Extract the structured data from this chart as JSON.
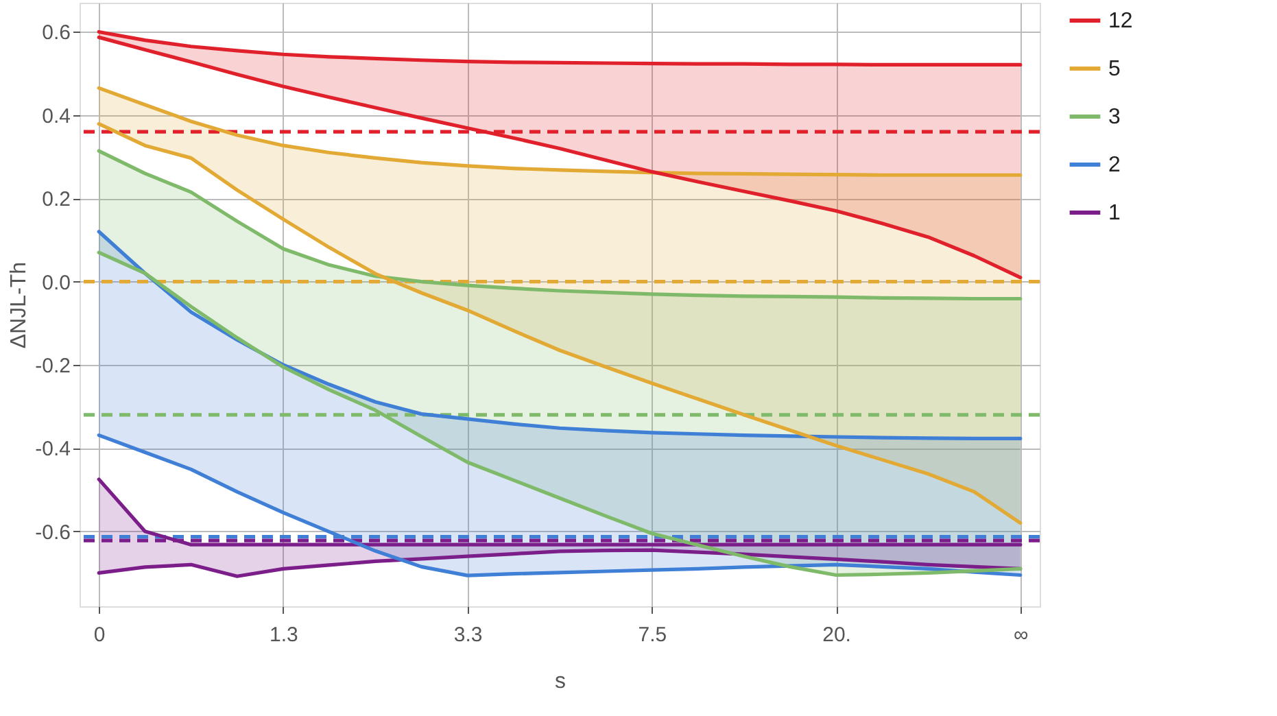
{
  "chart_data": {
    "type": "line",
    "xlabel": "s",
    "ylabel": "ΔNJL-Th",
    "categories": [
      "0",
      null,
      null,
      null,
      "1.3",
      null,
      null,
      null,
      "3.3",
      null,
      null,
      null,
      "7.5",
      null,
      null,
      null,
      "20.",
      null,
      null,
      null,
      "∞"
    ],
    "ylim": [
      -0.78,
      0.67
    ],
    "yticks": [
      -0.6,
      -0.4,
      -0.2,
      {
        "value": 0,
        "label": "0.0"
      },
      0.2,
      0.4,
      0.6
    ],
    "grid": true,
    "legend": "right",
    "marker": "none",
    "line_style": "solid",
    "series": [
      {
        "name": "12",
        "color": "#e0202a",
        "values": [
          0.6,
          0.58,
          0.565,
          0.555,
          0.546,
          0.54,
          0.536,
          0.532,
          0.529,
          0.527,
          0.526,
          0.525,
          0.524,
          0.523,
          0.523,
          0.522,
          0.522,
          0.521,
          0.521,
          0.521,
          0.521
        ],
        "lower": [
          0.587,
          0.557,
          0.528,
          0.498,
          0.469,
          0.443,
          0.418,
          0.393,
          0.369,
          0.345,
          0.32,
          0.292,
          0.264,
          0.24,
          0.217,
          0.194,
          0.17,
          0.14,
          0.107,
          0.062,
          0.01
        ],
        "upper": [
          0.6,
          0.58,
          0.565,
          0.555,
          0.546,
          0.54,
          0.536,
          0.532,
          0.529,
          0.527,
          0.526,
          0.525,
          0.524,
          0.523,
          0.523,
          0.522,
          0.522,
          0.521,
          0.521,
          0.521,
          0.521
        ]
      },
      {
        "color": "#e0202a",
        "values": [
          0.587,
          0.557,
          0.528,
          0.498,
          0.469,
          0.443,
          0.418,
          0.393,
          0.369,
          0.345,
          0.32,
          0.292,
          0.264,
          0.24,
          0.217,
          0.194,
          0.17,
          0.14,
          0.107,
          0.062,
          0.01
        ]
      },
      {
        "name": "5",
        "color": "#e3a935",
        "values": [
          0.465,
          0.425,
          0.385,
          0.352,
          0.327,
          0.31,
          0.297,
          0.286,
          0.278,
          0.272,
          0.268,
          0.265,
          0.262,
          0.26,
          0.259,
          0.258,
          0.257,
          0.256,
          0.256,
          0.256,
          0.256
        ],
        "lower": [
          0.379,
          0.327,
          0.297,
          0.22,
          0.15,
          0.082,
          0.019,
          -0.027,
          -0.069,
          -0.118,
          -0.165,
          -0.205,
          -0.244,
          -0.282,
          -0.32,
          -0.357,
          -0.394,
          -0.428,
          -0.462,
          -0.505,
          -0.58
        ],
        "upper": [
          0.465,
          0.425,
          0.385,
          0.352,
          0.327,
          0.31,
          0.297,
          0.286,
          0.278,
          0.272,
          0.268,
          0.265,
          0.262,
          0.26,
          0.259,
          0.258,
          0.257,
          0.256,
          0.256,
          0.256,
          0.256
        ]
      },
      {
        "color": "#e3a935",
        "values": [
          0.379,
          0.327,
          0.297,
          0.22,
          0.15,
          0.082,
          0.019,
          -0.027,
          -0.069,
          -0.118,
          -0.165,
          -0.205,
          -0.244,
          -0.282,
          -0.32,
          -0.357,
          -0.394,
          -0.428,
          -0.462,
          -0.505,
          -0.58
        ]
      },
      {
        "name": "3",
        "color": "#7fba6a",
        "values": [
          0.314,
          0.26,
          0.215,
          0.145,
          0.079,
          0.04,
          0.013,
          0.0,
          -0.009,
          -0.016,
          -0.022,
          -0.026,
          -0.03,
          -0.033,
          -0.035,
          -0.036,
          -0.037,
          -0.039,
          -0.04,
          -0.041,
          -0.041
        ],
        "lower": [
          0.07,
          0.02,
          -0.06,
          -0.135,
          -0.205,
          -0.26,
          -0.309,
          -0.372,
          -0.434,
          -0.477,
          -0.52,
          -0.563,
          -0.605,
          -0.633,
          -0.66,
          -0.685,
          -0.705,
          -0.703,
          -0.7,
          -0.695,
          -0.69
        ],
        "upper": [
          0.314,
          0.26,
          0.215,
          0.145,
          0.079,
          0.04,
          0.013,
          0.0,
          -0.009,
          -0.016,
          -0.022,
          -0.026,
          -0.03,
          -0.033,
          -0.035,
          -0.036,
          -0.037,
          -0.039,
          -0.04,
          -0.041,
          -0.041
        ]
      },
      {
        "color": "#7fba6a",
        "values": [
          0.07,
          0.02,
          -0.06,
          -0.135,
          -0.205,
          -0.26,
          -0.309,
          -0.372,
          -0.434,
          -0.477,
          -0.52,
          -0.563,
          -0.605,
          -0.633,
          -0.66,
          -0.685,
          -0.705,
          -0.703,
          -0.7,
          -0.695,
          -0.69
        ]
      },
      {
        "name": "2",
        "color": "#3f7fd6",
        "values": [
          0.12,
          0.02,
          -0.073,
          -0.14,
          -0.2,
          -0.247,
          -0.289,
          -0.318,
          -0.33,
          -0.342,
          -0.352,
          -0.358,
          -0.363,
          -0.366,
          -0.369,
          -0.371,
          -0.373,
          -0.375,
          -0.376,
          -0.377,
          -0.377
        ],
        "lower": [
          -0.369,
          -0.41,
          -0.451,
          -0.505,
          -0.555,
          -0.601,
          -0.647,
          -0.685,
          -0.706,
          -0.702,
          -0.699,
          -0.696,
          -0.693,
          -0.69,
          -0.686,
          -0.683,
          -0.68,
          -0.685,
          -0.69,
          -0.698,
          -0.705
        ],
        "upper": [
          0.12,
          0.02,
          -0.073,
          -0.14,
          -0.2,
          -0.247,
          -0.289,
          -0.318,
          -0.33,
          -0.342,
          -0.352,
          -0.358,
          -0.363,
          -0.366,
          -0.369,
          -0.371,
          -0.373,
          -0.375,
          -0.376,
          -0.377,
          -0.377
        ]
      },
      {
        "color": "#3f7fd6",
        "values": [
          -0.369,
          -0.41,
          -0.451,
          -0.505,
          -0.555,
          -0.601,
          -0.647,
          -0.685,
          -0.706,
          -0.702,
          -0.699,
          -0.696,
          -0.693,
          -0.69,
          -0.686,
          -0.683,
          -0.68,
          -0.685,
          -0.69,
          -0.698,
          -0.705
        ]
      },
      {
        "name": "1",
        "color": "#7b1e8a",
        "values": [
          -0.475,
          -0.6,
          -0.632,
          -0.632,
          -0.632,
          -0.632,
          -0.632,
          -0.632,
          -0.632,
          -0.632,
          -0.632,
          -0.632,
          -0.632,
          -0.632,
          -0.632,
          -0.632,
          -0.632,
          -0.632,
          -0.632,
          -0.632,
          -0.632
        ],
        "lower": [
          -0.7,
          -0.686,
          -0.68,
          -0.708,
          -0.69,
          -0.681,
          -0.672,
          -0.666,
          -0.66,
          -0.654,
          -0.648,
          -0.646,
          -0.645,
          -0.65,
          -0.655,
          -0.661,
          -0.667,
          -0.673,
          -0.68,
          -0.685,
          -0.69
        ],
        "upper": [
          -0.475,
          -0.6,
          -0.632,
          -0.632,
          -0.632,
          -0.632,
          -0.632,
          -0.632,
          -0.632,
          -0.632,
          -0.632,
          -0.632,
          -0.632,
          -0.632,
          -0.632,
          -0.632,
          -0.632,
          -0.632,
          -0.632,
          -0.632,
          -0.632
        ]
      },
      {
        "color": "#7b1e8a",
        "values": [
          -0.7,
          -0.686,
          -0.68,
          -0.708,
          -0.69,
          -0.681,
          -0.672,
          -0.666,
          -0.66,
          -0.654,
          -0.648,
          -0.646,
          -0.645,
          -0.65,
          -0.655,
          -0.661,
          -0.667,
          -0.673,
          -0.68,
          -0.685,
          -0.69
        ]
      }
    ],
    "ref_lines": [
      {
        "axis": "y",
        "value": 0.36,
        "color": "#e0202a",
        "line_style": "dashed"
      },
      {
        "axis": "y",
        "value": 0.0,
        "color": "#e3a935",
        "line_style": "dashed"
      },
      {
        "axis": "y",
        "value": -0.32,
        "color": "#7fba6a",
        "line_style": "dashed"
      },
      {
        "axis": "y",
        "value": -0.613,
        "color": "#3f7fd6",
        "line_style": "dashed"
      },
      {
        "axis": "y",
        "value": -0.622,
        "color": "#7b1e8a",
        "line_style": "dashed"
      }
    ]
  }
}
